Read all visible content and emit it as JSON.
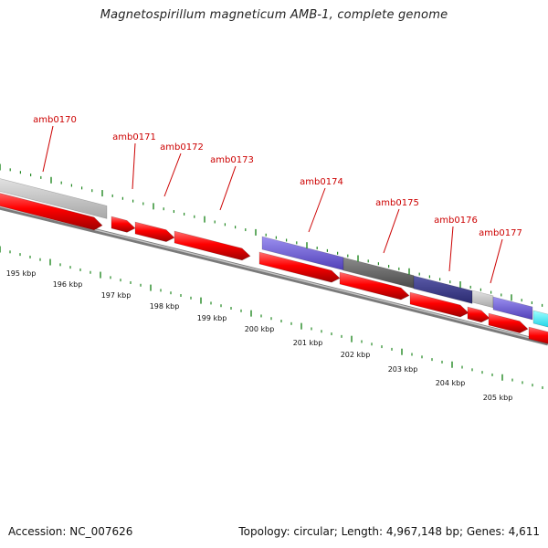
{
  "title": "Magnetospirillum magneticum AMB-1, complete genome",
  "footer": {
    "accession": "Accession: NC_007626",
    "summary": "Topology: circular; Length: 4,967,148 bp; Genes: 4,611"
  },
  "colors": {
    "forward_gene": "#ff0000",
    "label": "#cc0000",
    "tick": "#228822",
    "gray_feature": "#c8c8c8",
    "dark_gray_feature": "#6a6a6a",
    "blue_feature": "#7060d0",
    "dark_blue_feature": "#3c3c88",
    "cyan_feature": "#00e0f0"
  },
  "gene_labels": [
    "amb0170",
    "amb0171",
    "amb0172",
    "amb0173",
    "amb0174",
    "amb0175",
    "amb0176",
    "amb0177"
  ],
  "scale_labels": [
    "195 kbp",
    "196 kbp",
    "197 kbp",
    "198 kbp",
    "199 kbp",
    "200 kbp",
    "201 kbp",
    "202 kbp",
    "203 kbp",
    "204 kbp",
    "205 kbp"
  ]
}
